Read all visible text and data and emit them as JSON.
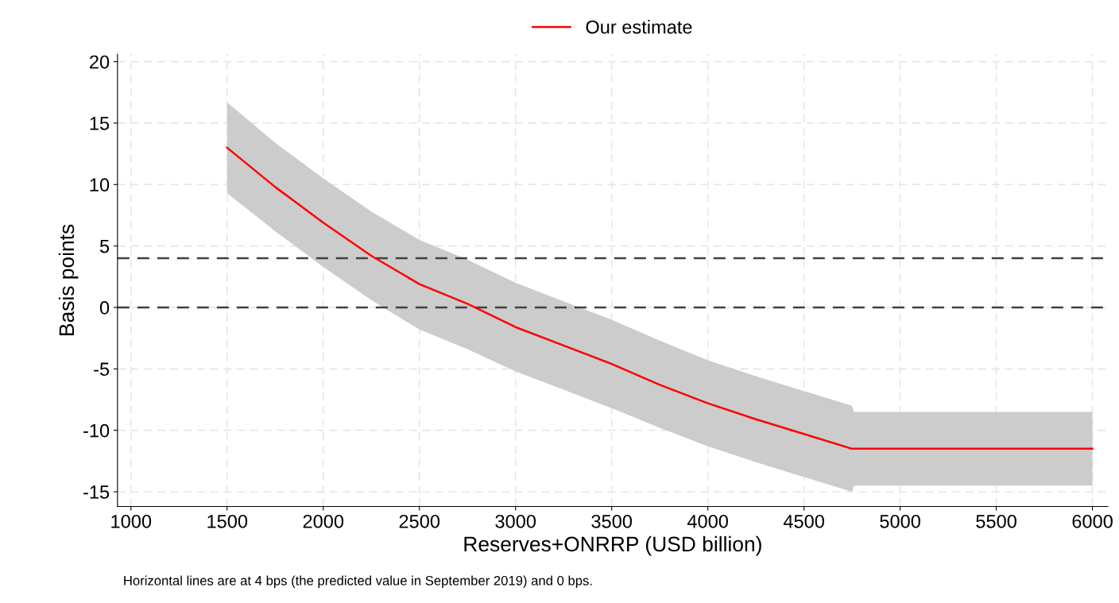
{
  "chart_data": {
    "type": "line",
    "xlabel": "Reserves+ONRRP (USD billion)",
    "ylabel": "Basis points",
    "x": [
      1500,
      1750,
      2000,
      2250,
      2500,
      2750,
      3000,
      3250,
      3500,
      3750,
      4000,
      4250,
      4500,
      4750,
      4760,
      5000,
      5500,
      6000
    ],
    "series": [
      {
        "name": "Our estimate",
        "color": "#ff0000",
        "values": [
          13,
          9.8,
          6.9,
          4.2,
          1.9,
          0.3,
          -1.6,
          -3.1,
          -4.6,
          -6.3,
          -7.8,
          -9.1,
          -10.3,
          -11.5,
          -11.5,
          -11.5,
          -11.5,
          -11.5
        ],
        "lower": [
          9.3,
          6.2,
          3.3,
          0.6,
          -1.8,
          -3.4,
          -5.2,
          -6.7,
          -8.2,
          -9.8,
          -11.3,
          -12.6,
          -13.8,
          -15.0,
          -14.5,
          -14.5,
          -14.5,
          -14.5
        ],
        "upper": [
          16.7,
          13.4,
          10.5,
          7.8,
          5.5,
          3.9,
          2.0,
          0.5,
          -1.0,
          -2.7,
          -4.3,
          -5.6,
          -6.8,
          -8.0,
          -8.5,
          -8.5,
          -8.5,
          -8.5
        ]
      }
    ],
    "xlim": [
      930,
      6080
    ],
    "ylim": [
      -16.2,
      20.6
    ],
    "xticks": [
      1000,
      1500,
      2000,
      2500,
      3000,
      3500,
      4000,
      4500,
      5000,
      5500,
      6000
    ],
    "yticks": [
      -15,
      -10,
      -5,
      0,
      5,
      10,
      15,
      20
    ],
    "ref_lines": [
      {
        "axis": "y",
        "value": 4,
        "color": "#404040",
        "line_style": "dashed"
      },
      {
        "axis": "y",
        "value": 0,
        "color": "#404040",
        "line_style": "dashed"
      }
    ],
    "grid": true,
    "legend": "top",
    "marker": "none",
    "line_style": "solid",
    "annotations": [
      "Horizontal lines are at 4 bps (the predicted value in September 2019) and 0 bps."
    ]
  }
}
